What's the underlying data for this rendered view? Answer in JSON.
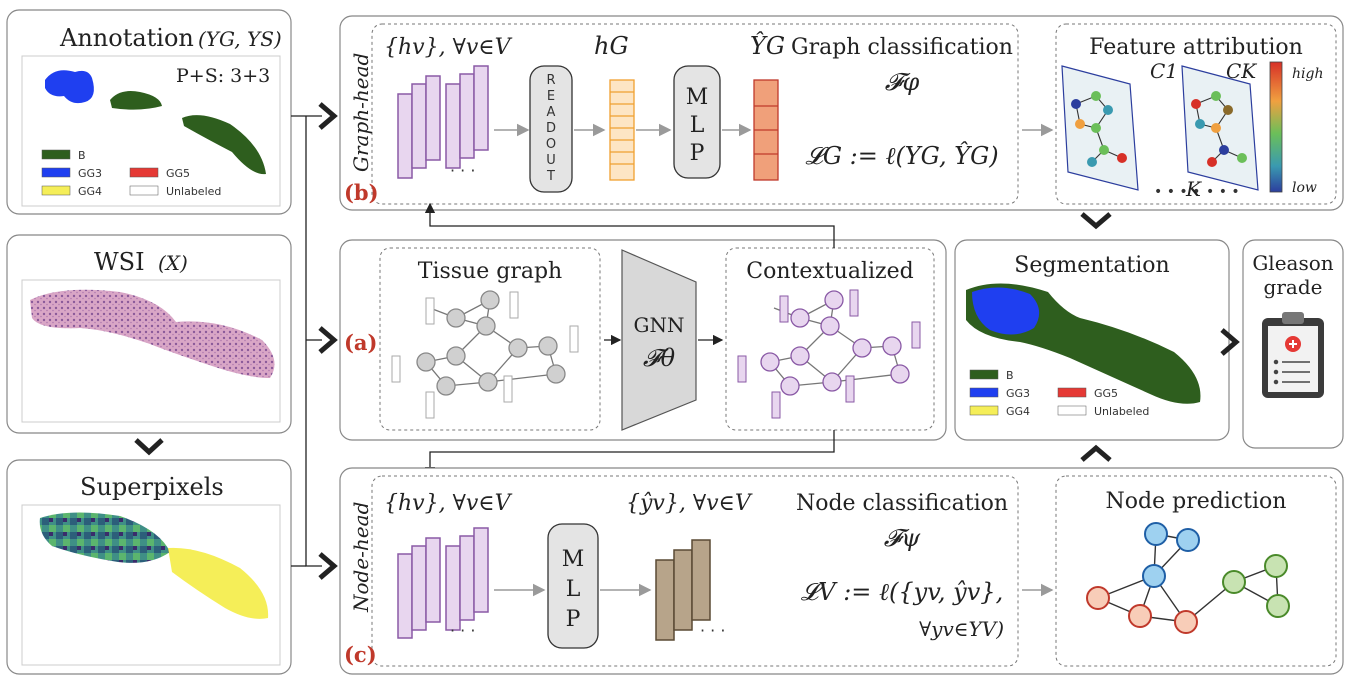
{
  "annotation": {
    "title": "Annotation",
    "title_math": "(YG, YS)",
    "ps_score": "P+S: 3+3",
    "legend": [
      {
        "label": "B",
        "color": "#2e5e1e"
      },
      {
        "label": "GG3",
        "color": "#1f3ff0"
      },
      {
        "label": "GG5",
        "color": "#e53935"
      },
      {
        "label": "GG4",
        "color": "#f5ee58"
      },
      {
        "label": "Unlabeled",
        "color": "#ffffff"
      }
    ]
  },
  "wsi": {
    "title": "WSI",
    "title_math": "(X)"
  },
  "superpixels": {
    "title": "Superpixels"
  },
  "graph_head": {
    "side_label": "Graph-head",
    "panel_letter": "(b)",
    "node_features": "{hv}, ∀v∈V",
    "readout_letters": [
      "R",
      "E",
      "A",
      "D",
      "O",
      "U",
      "T"
    ],
    "hg": "hG",
    "mlp_letters": [
      "M",
      "L",
      "P"
    ],
    "yhat": "ŶG",
    "title": "Graph classification",
    "func": "𝓕φ",
    "loss": "𝓛G := ℓ(YG, ŶG)"
  },
  "feature_attribution": {
    "title": "Feature attribution",
    "c1": "C1",
    "ck": "CK",
    "high": "high",
    "low": "low",
    "k": "K"
  },
  "panel_a": {
    "panel_letter": "(a)",
    "tissue_graph": "Tissue graph",
    "gnn": "GNN",
    "gnn_func": "𝓕θ",
    "contextualized": "Contextualized"
  },
  "segmentation": {
    "title": "Segmentation",
    "legend": [
      {
        "label": "B",
        "color": "#2e5e1e"
      },
      {
        "label": "GG3",
        "color": "#1f3ff0"
      },
      {
        "label": "GG5",
        "color": "#e53935"
      },
      {
        "label": "GG4",
        "color": "#f5ee58"
      },
      {
        "label": "Unlabeled",
        "color": "#ffffff"
      }
    ]
  },
  "gleason": {
    "title_line1": "Gleason",
    "title_line2": "grade"
  },
  "node_head": {
    "side_label": "Node-head",
    "panel_letter": "(c)",
    "node_features": "{hv}, ∀v∈V",
    "mlp_letters": [
      "M",
      "L",
      "P"
    ],
    "yhat": "{ŷv}, ∀v∈V",
    "title": "Node classification",
    "func": "𝓕ψ",
    "loss_line1": "𝓛V := ℓ({yv, ŷv},",
    "loss_line2": "∀yv∈YV)"
  },
  "node_prediction": {
    "title": "Node prediction"
  }
}
